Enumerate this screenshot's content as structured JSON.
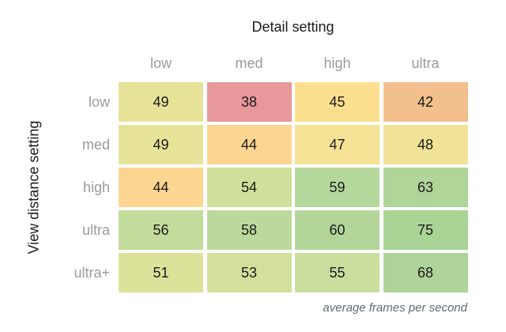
{
  "chart_data": {
    "type": "heatmap",
    "x_axis_title": "Detail setting",
    "y_axis_title": "View distance setting",
    "caption": "average frames per second",
    "columns": [
      "low",
      "med",
      "high",
      "ultra"
    ],
    "rows": [
      "low",
      "med",
      "high",
      "ultra",
      "ultra+"
    ],
    "values": [
      [
        49,
        38,
        45,
        42
      ],
      [
        49,
        44,
        47,
        48
      ],
      [
        44,
        54,
        59,
        63
      ],
      [
        56,
        58,
        60,
        75
      ],
      [
        51,
        53,
        55,
        68
      ]
    ],
    "cell_colors": [
      [
        "#e7e399",
        "#e8989b",
        "#fcdf8e",
        "#f3bf8d"
      ],
      [
        "#e7e399",
        "#fcd591",
        "#f5e295",
        "#f0e297"
      ],
      [
        "#fcd591",
        "#cfe09b",
        "#b5d89c",
        "#afd599"
      ],
      [
        "#c3dc9c",
        "#bcd99d",
        "#b2d69a",
        "#aad396"
      ],
      [
        "#dce29a",
        "#d3e09b",
        "#c9de9d",
        "#add398"
      ]
    ],
    "value_range": [
      38,
      75
    ],
    "colormap": "red-yellow-green",
    "legend": "none",
    "grid": "off"
  },
  "colors": {
    "background": "#ffffff",
    "axis_title_text": "#1a1a1a",
    "tick_label_text": "#9b9b9b",
    "cell_value_text": "#1b1b1b",
    "caption_text": "#63696e"
  }
}
